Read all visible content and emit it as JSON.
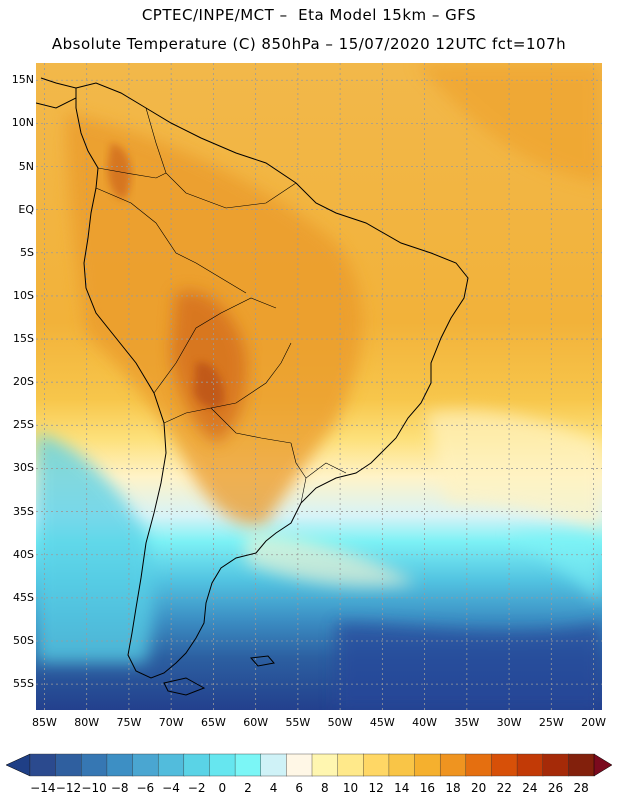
{
  "header": {
    "line1": "CPTEC/INPE/MCT –  Eta Model 15km – GFS",
    "line2": "Absolute Temperature (C) 850hPa – 15/07/2020 12UTC fct=107h"
  },
  "map": {
    "lat_range": [
      -58,
      17
    ],
    "lon_range": [
      -86,
      -19
    ],
    "lat_ticks": [
      {
        "value": 15,
        "label": "15N"
      },
      {
        "value": 10,
        "label": "10N"
      },
      {
        "value": 5,
        "label": "5N"
      },
      {
        "value": 0,
        "label": "EQ"
      },
      {
        "value": -5,
        "label": "5S"
      },
      {
        "value": -10,
        "label": "10S"
      },
      {
        "value": -15,
        "label": "15S"
      },
      {
        "value": -20,
        "label": "20S"
      },
      {
        "value": -25,
        "label": "25S"
      },
      {
        "value": -30,
        "label": "30S"
      },
      {
        "value": -35,
        "label": "35S"
      },
      {
        "value": -40,
        "label": "40S"
      },
      {
        "value": -45,
        "label": "45S"
      },
      {
        "value": -50,
        "label": "50S"
      },
      {
        "value": -55,
        "label": "55S"
      }
    ],
    "lon_ticks": [
      {
        "value": -85,
        "label": "85W"
      },
      {
        "value": -80,
        "label": "80W"
      },
      {
        "value": -75,
        "label": "75W"
      },
      {
        "value": -70,
        "label": "70W"
      },
      {
        "value": -65,
        "label": "65W"
      },
      {
        "value": -60,
        "label": "60W"
      },
      {
        "value": -55,
        "label": "55W"
      },
      {
        "value": -50,
        "label": "50W"
      },
      {
        "value": -45,
        "label": "45W"
      },
      {
        "value": -40,
        "label": "40W"
      },
      {
        "value": -35,
        "label": "35W"
      },
      {
        "value": -30,
        "label": "30W"
      },
      {
        "value": -25,
        "label": "25W"
      },
      {
        "value": -20,
        "label": "20W"
      }
    ]
  },
  "colorbar": {
    "labels": [
      "-14",
      "-12",
      "-10",
      "-8",
      "-6",
      "-4",
      "-2",
      "0",
      "2",
      "4",
      "6",
      "8",
      "10",
      "12",
      "14",
      "16",
      "18",
      "20",
      "22",
      "24",
      "26",
      "28"
    ],
    "colors": [
      "#2b4a8e",
      "#2f5f9f",
      "#3677b3",
      "#3d8fc4",
      "#4aa6d1",
      "#52bcdc",
      "#5ad3e6",
      "#66e6ef",
      "#7bf6f6",
      "#cff2f7",
      "#fff7e6",
      "#fff6b0",
      "#ffe98a",
      "#ffd765",
      "#f9c547",
      "#f5b02e",
      "#ef9420",
      "#e56f10",
      "#d75008",
      "#c23a06",
      "#a52a08",
      "#82200c"
    ],
    "low_end_color": "#1f3f86",
    "high_end_color": "#7b0a1e"
  }
}
